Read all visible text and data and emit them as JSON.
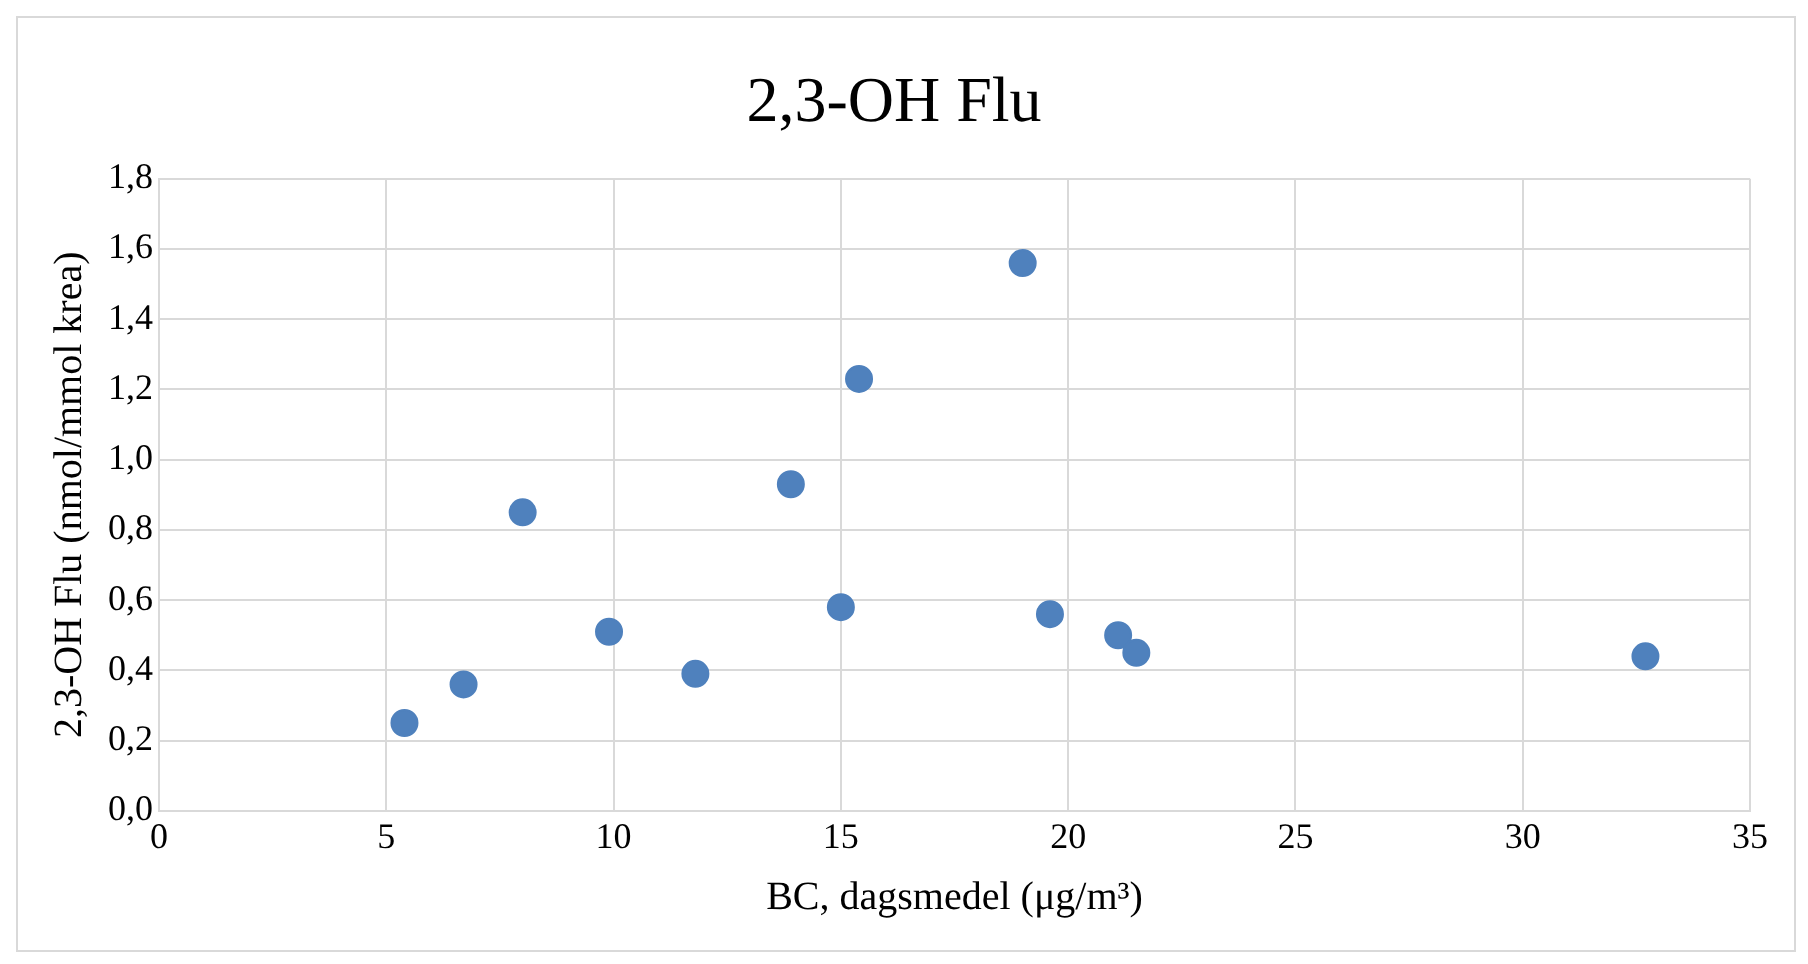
{
  "chart_data": {
    "type": "scatter",
    "title": "2,3-OH Flu",
    "xlabel": "BC, dagsmedel (μg/m³)",
    "ylabel": "2,3-OH Flu (nmol/mmol krea)",
    "series": [
      {
        "color": "#4f81bd",
        "x": [
          5.4,
          6.7,
          8.0,
          9.9,
          11.8,
          13.9,
          15.0,
          15.4,
          19.0,
          19.6,
          21.1,
          21.5,
          32.7
        ],
        "values": [
          0.25,
          0.36,
          0.85,
          0.51,
          0.39,
          0.93,
          0.58,
          1.23,
          1.56,
          0.56,
          0.5,
          0.45,
          0.44
        ]
      }
    ],
    "xlim": [
      0,
      35
    ],
    "xticks": [
      0,
      5,
      10,
      15,
      20,
      25,
      30,
      35
    ],
    "ylim": [
      0,
      1.8
    ],
    "yticks": [
      {
        "value": 0,
        "label": "0,0"
      },
      {
        "value": 0.2,
        "label": "0,2"
      },
      {
        "value": 0.4,
        "label": "0,4"
      },
      {
        "value": 0.6,
        "label": "0,6"
      },
      {
        "value": 0.8,
        "label": "0,8"
      },
      {
        "value": 1,
        "label": "1,0"
      },
      {
        "value": 1.2,
        "label": "1,2"
      },
      {
        "value": 1.4,
        "label": "1,4"
      },
      {
        "value": 1.6,
        "label": "1,6"
      },
      {
        "value": 1.8,
        "label": "1,8"
      }
    ],
    "grid": true,
    "marker": "circle"
  }
}
